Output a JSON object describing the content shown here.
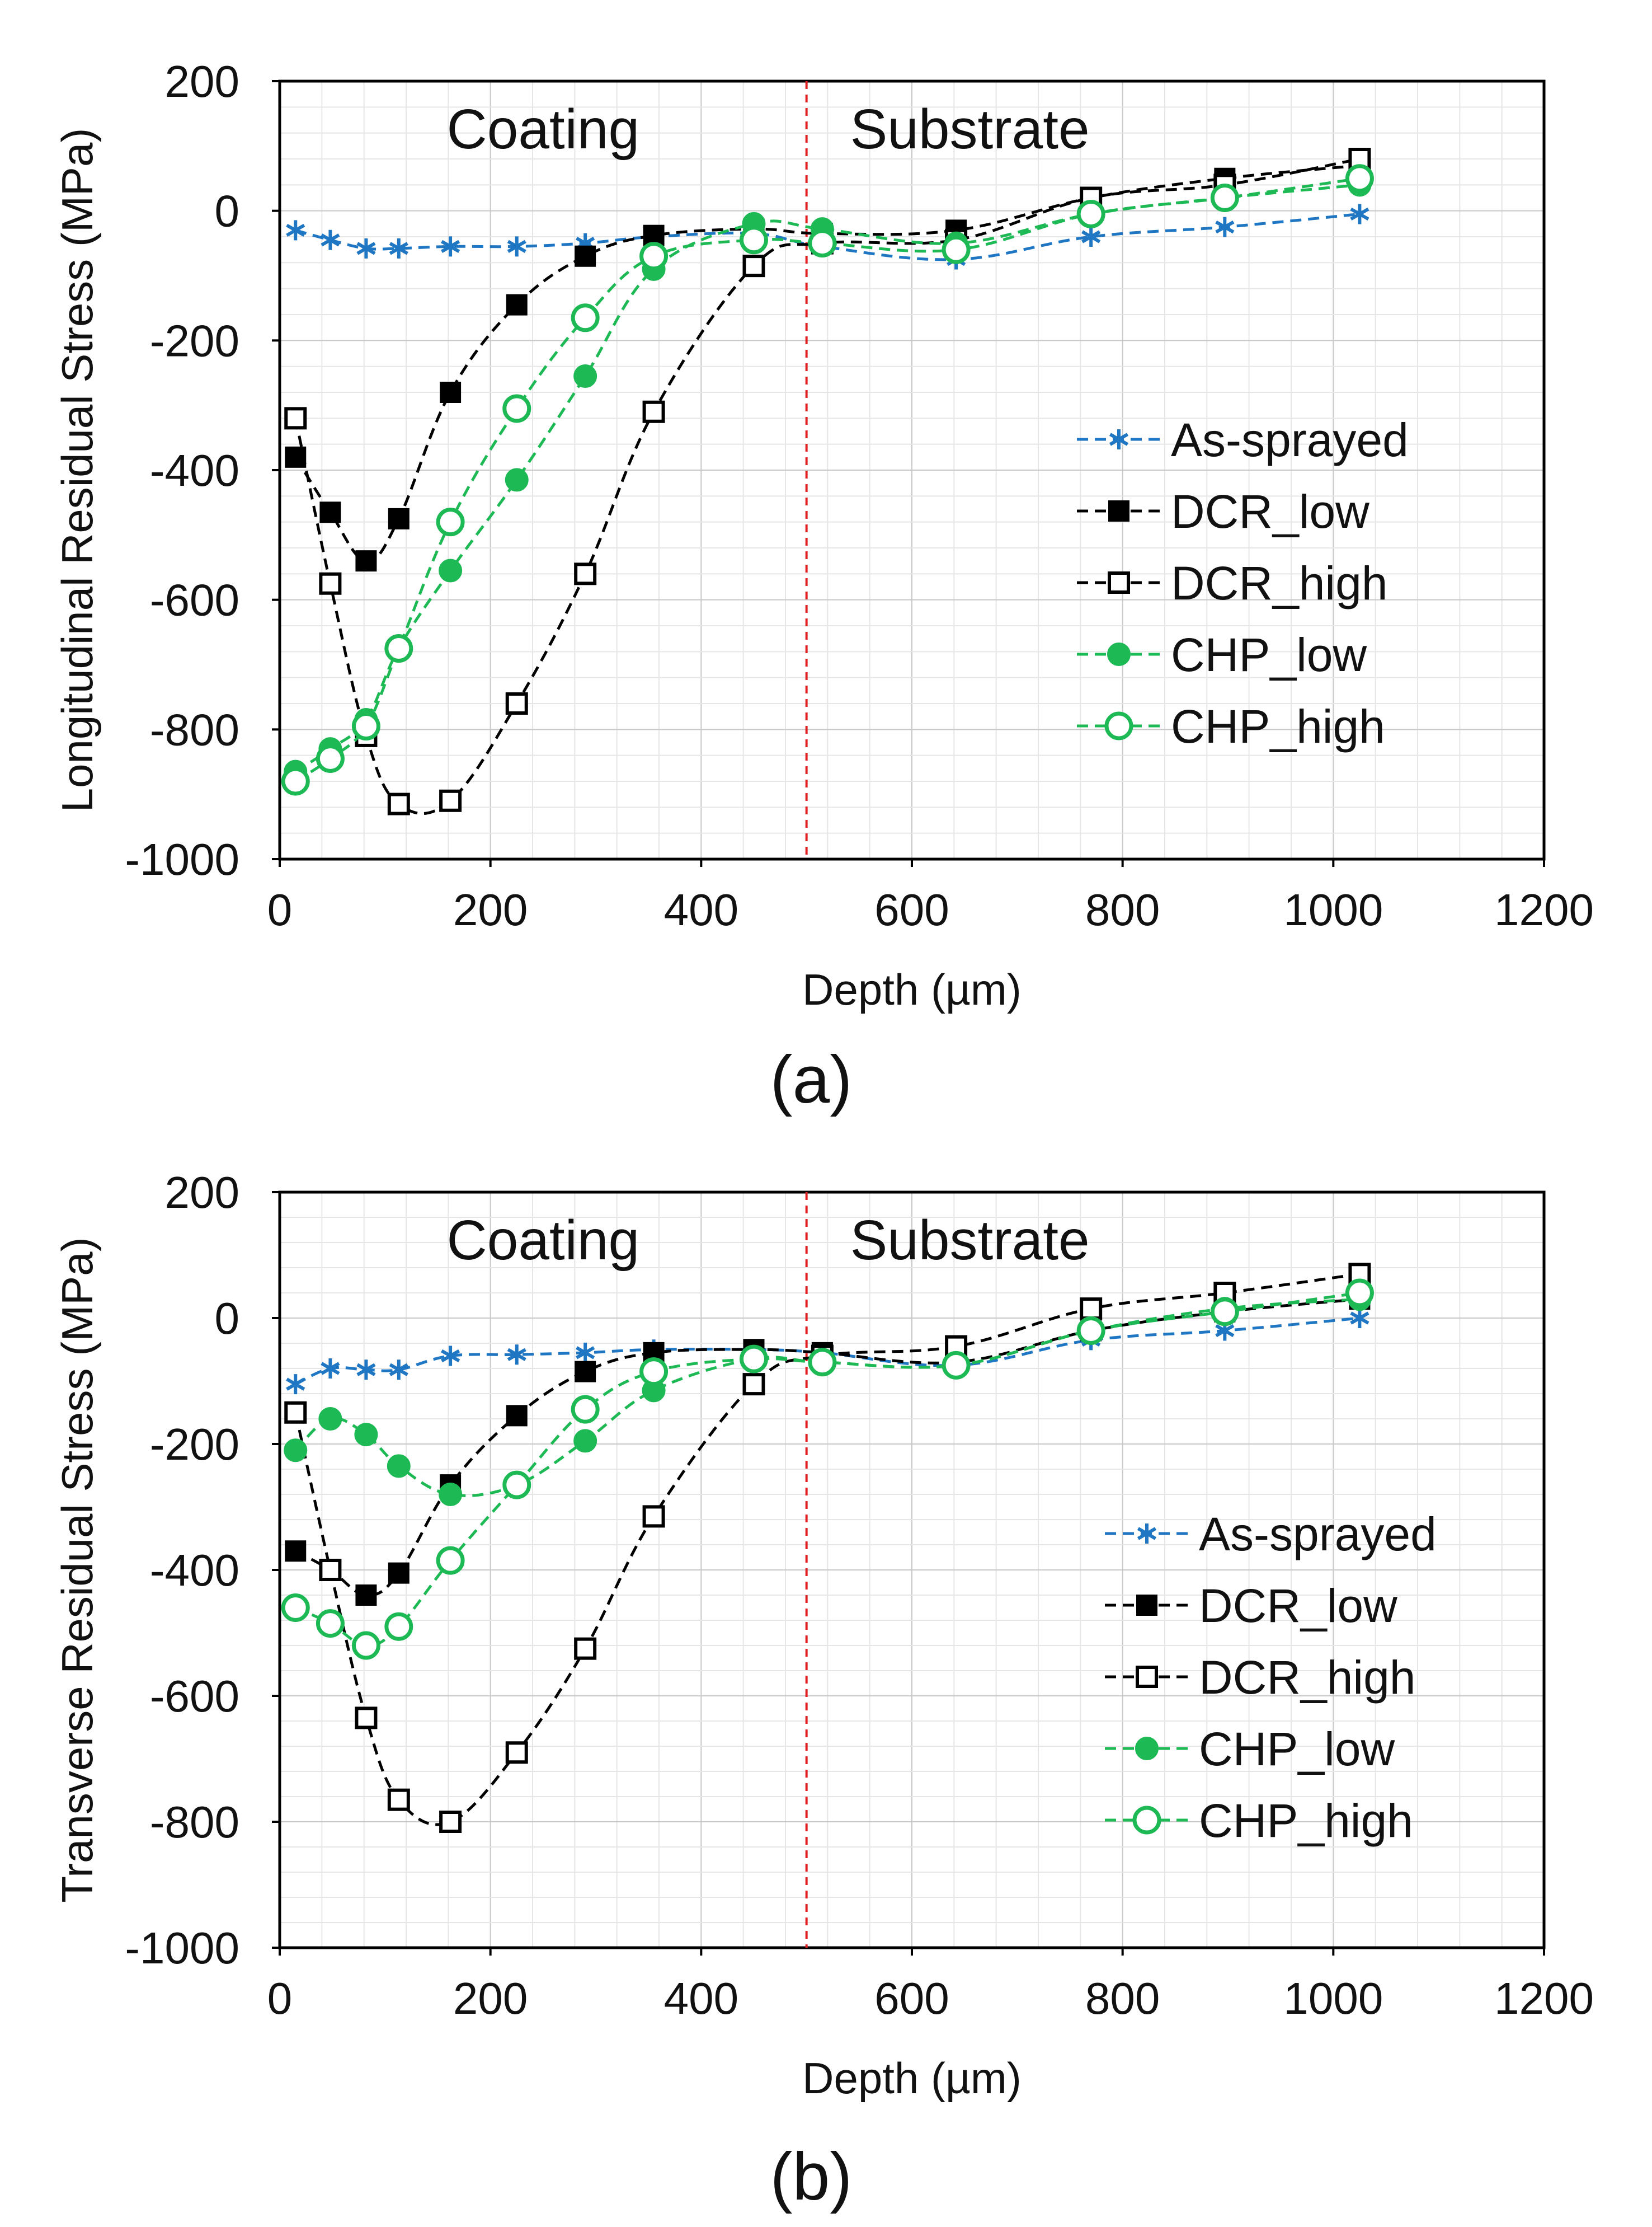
{
  "chart_data": [
    {
      "type": "line",
      "panel_label": "(a)",
      "xlabel": "Depth (µm)",
      "ylabel": "Longitudinal  Residual Stress (MPa)",
      "xlim": [
        0,
        1200
      ],
      "ylim": [
        -1000,
        200
      ],
      "xticks": [
        "0",
        "200",
        "400",
        "600",
        "800",
        "1000",
        "1200"
      ],
      "yticks": [
        "200",
        "0",
        "-200",
        "-400",
        "-600",
        "-800",
        "-1000"
      ],
      "grid": true,
      "legend_position": "right",
      "boundary_depth": 500,
      "region_labels": {
        "left": "Coating",
        "right": "Substrate"
      },
      "series": [
        {
          "name": "As-sprayed",
          "color": "#1f77c4",
          "marker": "star",
          "x": [
            15,
            48,
            82,
            113,
            162,
            225,
            290,
            355,
            450,
            515,
            642,
            770,
            897,
            1025
          ],
          "y": [
            -30,
            -45,
            -58,
            -58,
            -55,
            -55,
            -50,
            -40,
            -35,
            -55,
            -75,
            -40,
            -25,
            -5
          ]
        },
        {
          "name": "DCR_low",
          "color": "#000000",
          "marker": "square-filled",
          "x": [
            15,
            48,
            82,
            113,
            162,
            225,
            290,
            355,
            450,
            515,
            642,
            770,
            897,
            1025
          ],
          "y": [
            -380,
            -465,
            -540,
            -475,
            -280,
            -145,
            -70,
            -38,
            -28,
            -35,
            -30,
            20,
            50,
            70
          ]
        },
        {
          "name": "DCR_high",
          "color": "#000000",
          "marker": "square-open",
          "x": [
            15,
            48,
            82,
            113,
            162,
            225,
            290,
            355,
            450,
            515,
            642,
            770,
            897,
            1025
          ],
          "y": [
            -320,
            -575,
            -810,
            -915,
            -910,
            -760,
            -560,
            -310,
            -85,
            -50,
            -45,
            20,
            40,
            80
          ]
        },
        {
          "name": "CHP_low",
          "color": "#1db954",
          "marker": "circle-filled",
          "x": [
            15,
            48,
            82,
            113,
            162,
            225,
            290,
            355,
            450,
            515,
            642,
            770,
            897,
            1025
          ],
          "y": [
            -865,
            -830,
            -785,
            -675,
            -555,
            -415,
            -255,
            -90,
            -20,
            -28,
            -50,
            -5,
            20,
            40
          ]
        },
        {
          "name": "CHP_high",
          "color": "#1db954",
          "marker": "circle-open",
          "x": [
            15,
            48,
            82,
            113,
            162,
            225,
            290,
            355,
            450,
            515,
            642,
            770,
            897,
            1025
          ],
          "y": [
            -880,
            -845,
            -795,
            -675,
            -480,
            -305,
            -165,
            -70,
            -45,
            -50,
            -60,
            -5,
            20,
            50
          ]
        }
      ]
    },
    {
      "type": "line",
      "panel_label": "(b)",
      "xlabel": "Depth  (µm)",
      "ylabel": "Transverse Residual Stress (MPa)",
      "xlim": [
        0,
        1200
      ],
      "ylim": [
        -1000,
        200
      ],
      "xticks": [
        "0",
        "200",
        "400",
        "600",
        "800",
        "1000",
        "1200"
      ],
      "yticks": [
        "200",
        "0",
        "-200",
        "-400",
        "-600",
        "-800",
        "-1000"
      ],
      "grid": true,
      "legend_position": "right",
      "boundary_depth": 500,
      "region_labels": {
        "left": "Coating",
        "right": "Substrate"
      },
      "series": [
        {
          "name": "As-sprayed",
          "color": "#1f77c4",
          "marker": "star",
          "x": [
            15,
            48,
            82,
            113,
            162,
            225,
            290,
            355,
            450,
            515,
            642,
            770,
            897,
            1025
          ],
          "y": [
            -105,
            -80,
            -82,
            -82,
            -60,
            -58,
            -55,
            -50,
            -50,
            -55,
            -75,
            -35,
            -20,
            0
          ]
        },
        {
          "name": "DCR_low",
          "color": "#000000",
          "marker": "square-filled",
          "x": [
            15,
            48,
            82,
            113,
            162,
            225,
            290,
            355,
            450,
            515,
            642,
            770,
            897,
            1025
          ],
          "y": [
            -370,
            -400,
            -440,
            -405,
            -265,
            -155,
            -85,
            -55,
            -50,
            -55,
            -70,
            -20,
            10,
            30
          ]
        },
        {
          "name": "DCR_high",
          "color": "#000000",
          "marker": "square-open",
          "x": [
            15,
            48,
            82,
            113,
            162,
            225,
            290,
            355,
            450,
            515,
            642,
            770,
            897,
            1025
          ],
          "y": [
            -150,
            -400,
            -635,
            -765,
            -800,
            -690,
            -525,
            -315,
            -105,
            -60,
            -45,
            15,
            40,
            70
          ]
        },
        {
          "name": "CHP_low",
          "color": "#1db954",
          "marker": "circle-filled",
          "x": [
            15,
            48,
            82,
            113,
            162,
            225,
            290,
            355,
            450,
            515,
            642,
            770,
            897,
            1025
          ],
          "y": [
            -210,
            -160,
            -185,
            -235,
            -280,
            -265,
            -195,
            -115,
            -65,
            -70,
            -75,
            -20,
            15,
            30
          ]
        },
        {
          "name": "CHP_high",
          "color": "#1db954",
          "marker": "circle-open",
          "x": [
            15,
            48,
            82,
            113,
            162,
            225,
            290,
            355,
            450,
            515,
            642,
            770,
            897,
            1025
          ],
          "y": [
            -460,
            -485,
            -520,
            -490,
            -385,
            -265,
            -145,
            -85,
            -65,
            -70,
            -75,
            -20,
            10,
            40
          ]
        }
      ]
    }
  ]
}
